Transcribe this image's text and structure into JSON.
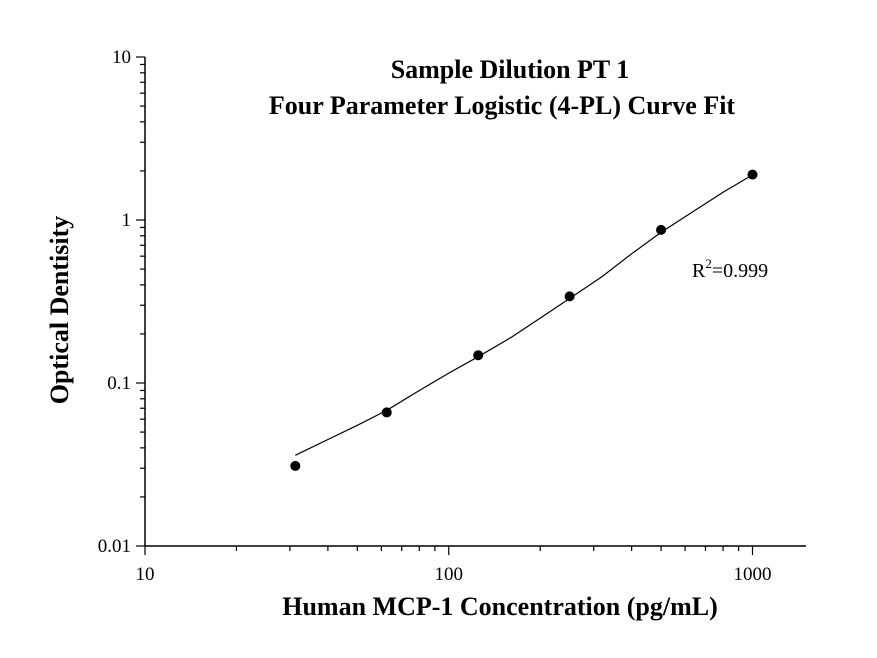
{
  "chart_data": {
    "type": "scatter",
    "title": "Sample Dilution PT 1",
    "subtitle": "Four Parameter Logistic (4-PL) Curve Fit",
    "xlabel": "Human MCP-1 Concentration (pg/mL)",
    "ylabel": "Optical Dentisity",
    "xscale": "log",
    "yscale": "log",
    "xlim": [
      10,
      1500
    ],
    "ylim": [
      0.01,
      10
    ],
    "xticks": [
      {
        "value": 10,
        "label": "10"
      },
      {
        "value": 100,
        "label": "100"
      },
      {
        "value": 1000,
        "label": "1000"
      }
    ],
    "yticks": [
      {
        "value": 0.01,
        "label": "0.01"
      },
      {
        "value": 0.1,
        "label": "0.1"
      },
      {
        "value": 1,
        "label": "1"
      },
      {
        "value": 10,
        "label": "10"
      }
    ],
    "grid": false,
    "legend": "none",
    "series": [
      {
        "x": [
          31.25,
          62.5,
          125,
          250,
          500,
          1000
        ],
        "y": [
          0.031,
          0.066,
          0.148,
          0.34,
          0.87,
          1.9
        ]
      }
    ],
    "fit": {
      "model": "4-PL",
      "x": [
        31.25,
        40,
        50,
        62.5,
        80,
        100,
        125,
        160,
        200,
        250,
        320,
        400,
        500,
        640,
        800,
        1000
      ],
      "y": [
        0.036,
        0.045,
        0.055,
        0.068,
        0.09,
        0.115,
        0.145,
        0.19,
        0.25,
        0.33,
        0.45,
        0.62,
        0.84,
        1.13,
        1.48,
        1.89
      ]
    },
    "annotation": {
      "base": "R",
      "sup": "2",
      "rest": "=0.999"
    },
    "colors": {
      "marker": "#000000",
      "line": "#000000",
      "axis": "#000000"
    }
  }
}
